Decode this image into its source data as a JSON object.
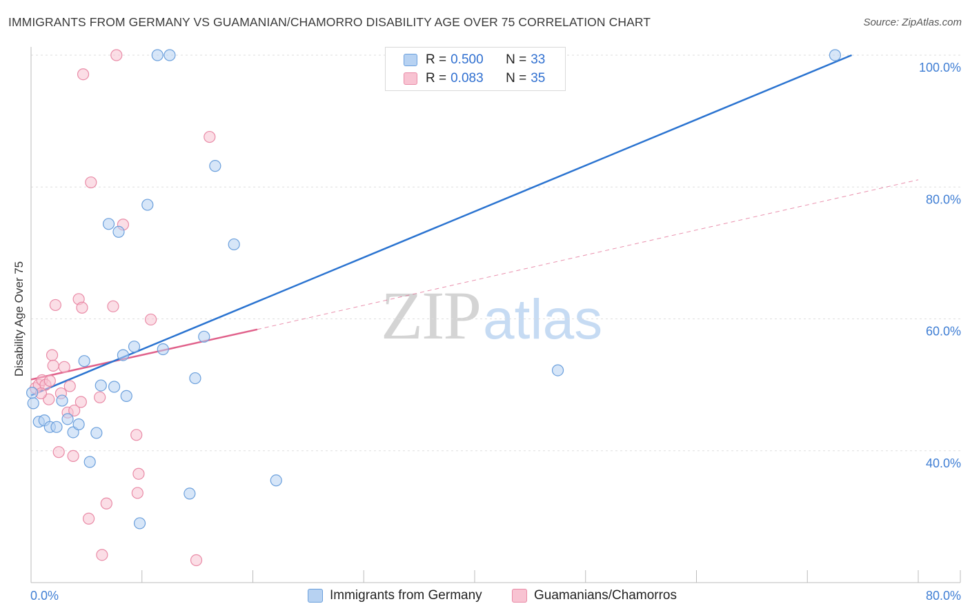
{
  "title": "IMMIGRANTS FROM GERMANY VS GUAMANIAN/CHAMORRO DISABILITY AGE OVER 75 CORRELATION CHART",
  "source": "Source: ZipAtlas.com",
  "watermark": {
    "zip": "ZIP",
    "atlas": "atlas"
  },
  "colors": {
    "germany_fill": "#b7d2f2",
    "germany_stroke": "#6a9fdc",
    "germany_line": "#2a73d0",
    "guam_fill": "#f8c3d2",
    "guam_stroke": "#e98aa6",
    "guam_line": "#e0608a",
    "tick_label": "#3f7ed4",
    "grid": "#dddddd"
  },
  "legend": {
    "rows": [
      {
        "r_label": "R =",
        "r_value": "0.500",
        "n_label": "N =",
        "n_value": "33"
      },
      {
        "r_label": "R =",
        "r_value": "0.083",
        "n_label": "N =",
        "n_value": "35"
      }
    ]
  },
  "chart_data": {
    "type": "scatter",
    "title": "IMMIGRANTS FROM GERMANY VS GUAMANIAN/CHAMORRO DISABILITY AGE OVER 75 CORRELATION CHART",
    "xlabel": "",
    "ylabel": "Disability Age Over 75",
    "xlim": [
      0,
      80
    ],
    "ylim": [
      20,
      102
    ],
    "x_tick_labels": [
      {
        "value": 0,
        "label": "0.0%"
      },
      {
        "value": 80,
        "label": "80.0%"
      }
    ],
    "y_tick_labels": [
      {
        "value": 100,
        "label": "100.0%"
      },
      {
        "value": 80,
        "label": "80.0%"
      },
      {
        "value": 60,
        "label": "60.0%"
      },
      {
        "value": 40,
        "label": "40.0%"
      }
    ],
    "series": [
      {
        "name": "Immigrants from Germany",
        "points": [
          [
            0.2,
            47.2
          ],
          [
            0.7,
            44.4
          ],
          [
            1.2,
            44.6
          ],
          [
            1.7,
            43.6
          ],
          [
            2.3,
            43.6
          ],
          [
            2.8,
            47.6
          ],
          [
            3.3,
            44.8
          ],
          [
            3.8,
            42.8
          ],
          [
            4.3,
            44.0
          ],
          [
            4.8,
            53.6
          ],
          [
            5.3,
            38.3
          ],
          [
            5.9,
            42.7
          ],
          [
            6.3,
            49.9
          ],
          [
            7.0,
            74.4
          ],
          [
            7.5,
            49.7
          ],
          [
            7.9,
            73.2
          ],
          [
            8.3,
            54.5
          ],
          [
            8.6,
            48.3
          ],
          [
            9.3,
            55.8
          ],
          [
            9.8,
            29.0
          ],
          [
            10.5,
            77.3
          ],
          [
            11.4,
            100.0
          ],
          [
            11.9,
            55.4
          ],
          [
            12.5,
            100.0
          ],
          [
            14.3,
            33.5
          ],
          [
            14.8,
            51.0
          ],
          [
            15.6,
            57.3
          ],
          [
            16.6,
            83.2
          ],
          [
            18.3,
            71.3
          ],
          [
            22.1,
            35.5
          ],
          [
            47.5,
            52.2
          ],
          [
            72.5,
            100.0
          ],
          [
            0.1,
            48.8
          ]
        ],
        "trend": {
          "x": [
            0,
            74
          ],
          "y": [
            48.4,
            100.0
          ]
        }
      },
      {
        "name": "Guamanians/Chamorros",
        "points": [
          [
            0.4,
            49.5
          ],
          [
            0.7,
            50.0
          ],
          [
            1.0,
            50.7
          ],
          [
            1.3,
            50.0
          ],
          [
            1.6,
            47.8
          ],
          [
            1.7,
            50.6
          ],
          [
            1.9,
            54.5
          ],
          [
            2.0,
            52.9
          ],
          [
            2.2,
            62.1
          ],
          [
            2.5,
            39.8
          ],
          [
            2.7,
            48.7
          ],
          [
            3.0,
            52.7
          ],
          [
            3.3,
            45.8
          ],
          [
            3.5,
            49.8
          ],
          [
            3.8,
            39.2
          ],
          [
            3.9,
            46.1
          ],
          [
            4.3,
            63.0
          ],
          [
            4.5,
            47.4
          ],
          [
            4.6,
            61.7
          ],
          [
            4.7,
            97.1
          ],
          [
            5.2,
            29.7
          ],
          [
            5.4,
            80.7
          ],
          [
            6.2,
            48.1
          ],
          [
            6.4,
            24.2
          ],
          [
            6.8,
            32.0
          ],
          [
            7.4,
            61.9
          ],
          [
            7.7,
            100.0
          ],
          [
            8.3,
            74.3
          ],
          [
            9.5,
            42.4
          ],
          [
            9.6,
            33.6
          ],
          [
            9.7,
            36.5
          ],
          [
            10.8,
            59.9
          ],
          [
            14.9,
            23.4
          ],
          [
            16.1,
            87.6
          ],
          [
            0.9,
            48.7
          ]
        ],
        "trend": {
          "x": [
            0,
            20.4
          ],
          "y": [
            50.8,
            58.4
          ]
        },
        "trend_extension": {
          "x": [
            20.4,
            80
          ],
          "y": [
            58.4,
            81.1
          ]
        }
      }
    ]
  },
  "bottom_legend": {
    "germany_label": "Immigrants from Germany",
    "guam_label": "Guamanians/Chamorros"
  }
}
